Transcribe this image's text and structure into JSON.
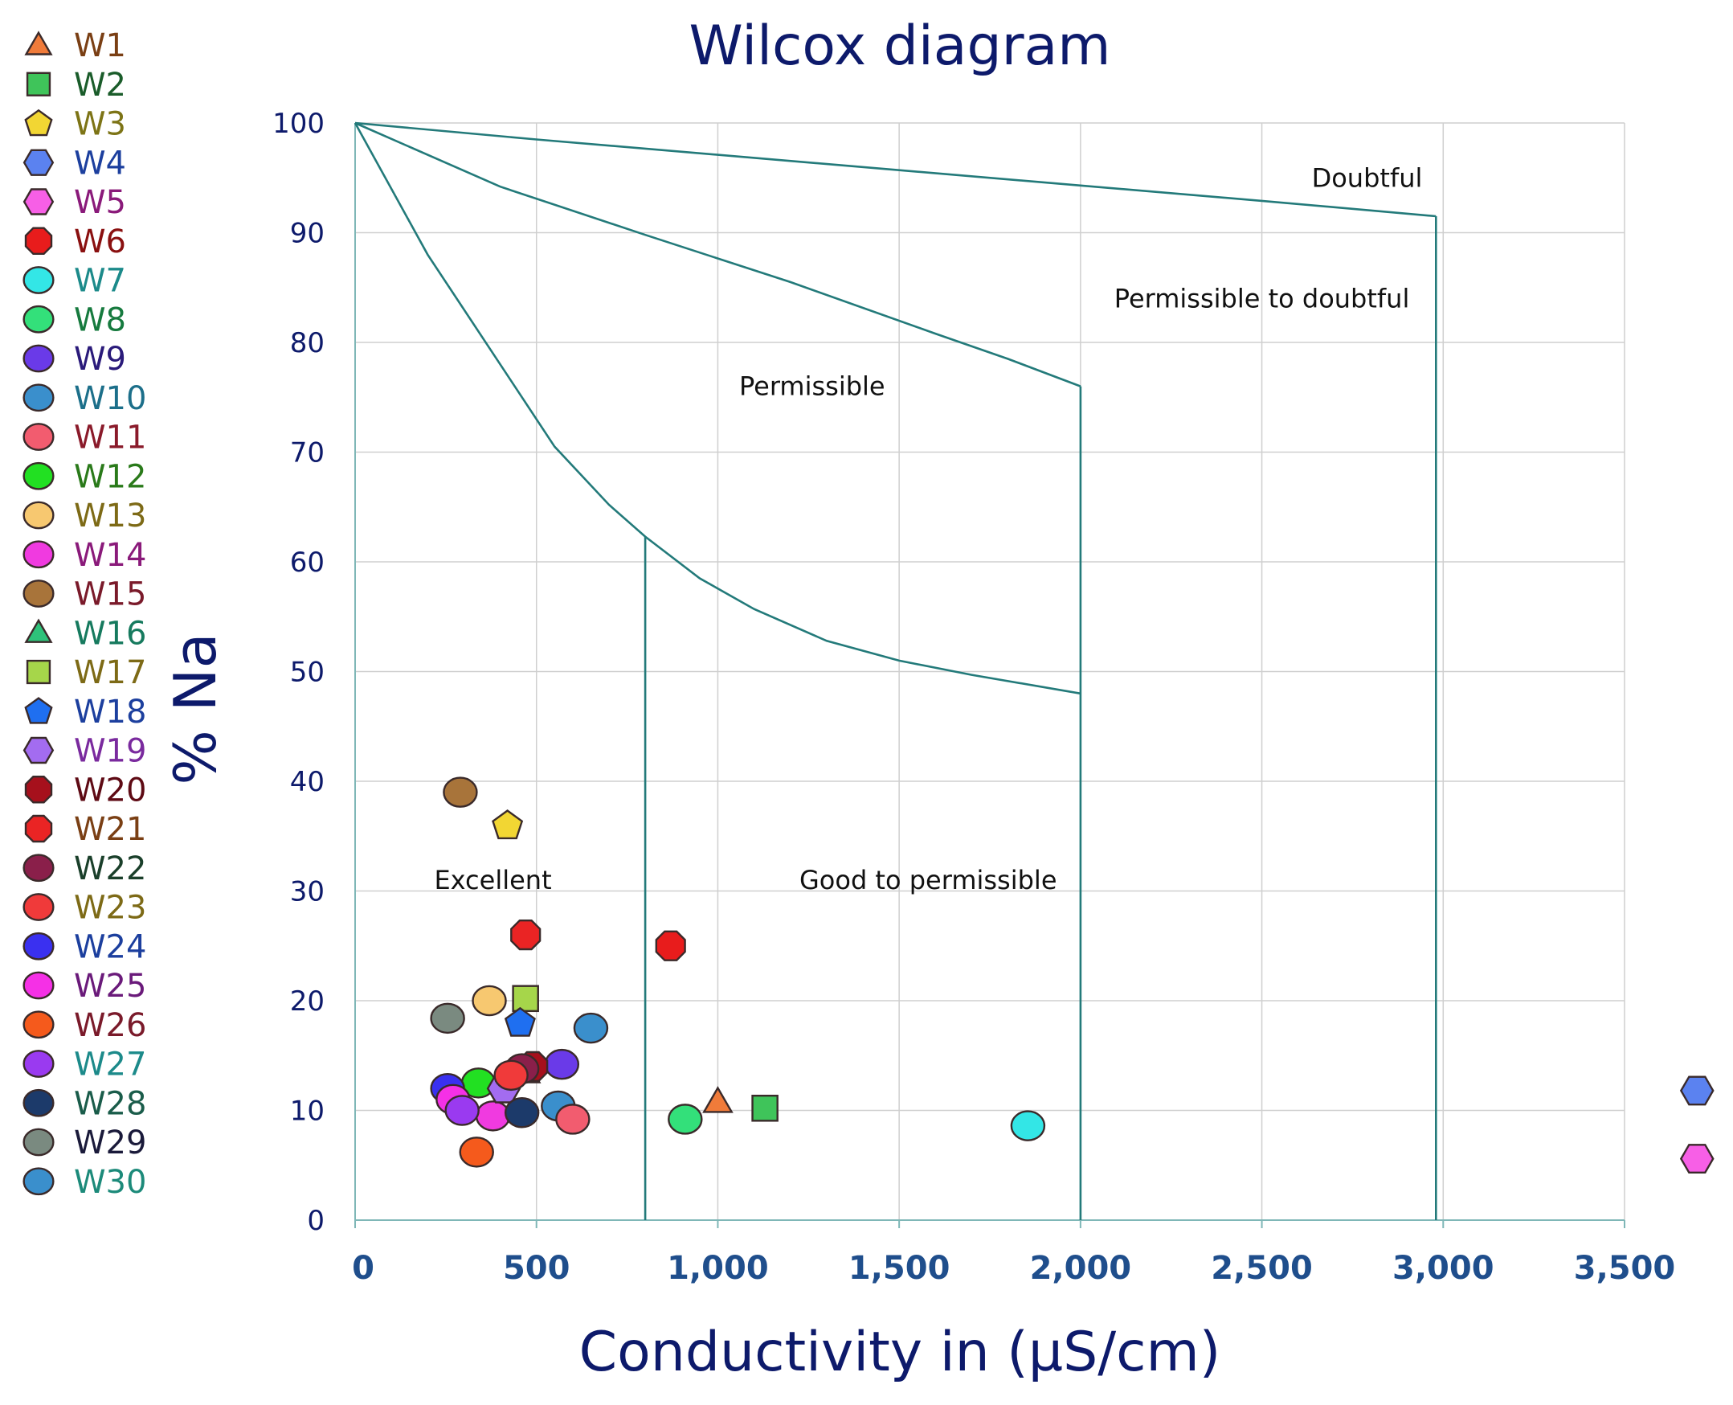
{
  "chart_data": {
    "type": "scatter",
    "title": "Wilcox diagram",
    "xlabel": "Conductivity in (µS/cm)",
    "ylabel": "% Na",
    "xlim": [
      0,
      3500
    ],
    "ylim": [
      0,
      100
    ],
    "grid": true,
    "legend_position": "left",
    "x_ticks": [
      0,
      500,
      1000,
      1500,
      2000,
      2500,
      3000,
      3500
    ],
    "x_tick_labels": [
      "0",
      "500",
      "1,000",
      "1,500",
      "2,000",
      "2,500",
      "3,000",
      "3,500"
    ],
    "y_ticks": [
      0,
      10,
      20,
      30,
      40,
      50,
      60,
      70,
      80,
      90,
      100
    ],
    "y_tick_labels": [
      "0",
      "10",
      "20",
      "30",
      "40",
      "50",
      "60",
      "70",
      "80",
      "90",
      "100"
    ],
    "classification_boundaries": [
      {
        "name": "excellent-curve",
        "points": [
          [
            0,
            100
          ],
          [
            200,
            88
          ],
          [
            400,
            78
          ],
          [
            550,
            70.5
          ],
          [
            700,
            65.2
          ],
          [
            800,
            62.3
          ],
          [
            950,
            58.5
          ],
          [
            1100,
            55.7
          ],
          [
            1300,
            52.8
          ],
          [
            1500,
            51.0
          ],
          [
            1700,
            49.7
          ],
          [
            2000,
            48.0
          ]
        ]
      },
      {
        "name": "permissible-curve",
        "points": [
          [
            0,
            100
          ],
          [
            400,
            94.2
          ],
          [
            800,
            89.8
          ],
          [
            1200,
            85.5
          ],
          [
            1600,
            80.8
          ],
          [
            1800,
            78.5
          ],
          [
            2000,
            76.0
          ]
        ]
      },
      {
        "name": "doubtful-line",
        "points": [
          [
            0,
            100
          ],
          [
            500,
            98.5
          ],
          [
            1000,
            97.1
          ],
          [
            1500,
            95.7
          ],
          [
            2000,
            94.3
          ],
          [
            2500,
            92.9
          ],
          [
            2980,
            91.5
          ]
        ]
      },
      {
        "name": "vertical-800",
        "points": [
          [
            800,
            0
          ],
          [
            800,
            62.3
          ]
        ]
      },
      {
        "name": "vertical-2000",
        "points": [
          [
            2000,
            0
          ],
          [
            2000,
            76.0
          ]
        ]
      },
      {
        "name": "vertical-2980",
        "points": [
          [
            2980,
            0
          ],
          [
            2980,
            91.5
          ]
        ]
      }
    ],
    "zone_labels": [
      {
        "text": "Excellent",
        "x": 380,
        "y": 31
      },
      {
        "text": "Good to permissible",
        "x": 1580,
        "y": 31
      },
      {
        "text": "Permissible",
        "x": 1260,
        "y": 76
      },
      {
        "text": "Permissible to doubtful",
        "x": 2500,
        "y": 84
      },
      {
        "text": "Doubtful",
        "x": 2790,
        "y": 95
      }
    ],
    "series": [
      {
        "name": "W1",
        "shape": "triangle",
        "color": "#f07b3a",
        "text_color": "#7a3f14",
        "x": 1000,
        "y": 10.8
      },
      {
        "name": "W2",
        "shape": "square",
        "color": "#3fc45a",
        "text_color": "#1a5c2a",
        "x": 1130,
        "y": 10.2
      },
      {
        "name": "W3",
        "shape": "pentagon",
        "color": "#f2d633",
        "text_color": "#7d7416",
        "x": 420,
        "y": 36
      },
      {
        "name": "W4",
        "shape": "hexagon",
        "color": "#5b82f0",
        "text_color": "#1c3f9e",
        "x": 3700,
        "y": 11.8
      },
      {
        "name": "W5",
        "shape": "hexagon",
        "color": "#f75fe6",
        "text_color": "#8a1a7a",
        "x": 3700,
        "y": 5.6
      },
      {
        "name": "W6",
        "shape": "octagon",
        "color": "#e81c1c",
        "text_color": "#8a1010",
        "x": 870,
        "y": 25
      },
      {
        "name": "W7",
        "shape": "circle",
        "color": "#33e6e6",
        "text_color": "#1c8a8a",
        "x": 1855,
        "y": 8.6
      },
      {
        "name": "W8",
        "shape": "circle",
        "color": "#33e07a",
        "text_color": "#167a3e",
        "x": 910,
        "y": 9.2
      },
      {
        "name": "W9",
        "shape": "circle",
        "color": "#6a3ae8",
        "text_color": "#2a1a7a",
        "x": 570,
        "y": 14.2
      },
      {
        "name": "W10",
        "shape": "circle",
        "color": "#3a8fcc",
        "text_color": "#1c6f8a",
        "x": 560,
        "y": 10.4
      },
      {
        "name": "W11",
        "shape": "circle",
        "color": "#f25c6f",
        "text_color": "#8a1a2a",
        "x": 600,
        "y": 9.2
      },
      {
        "name": "W12",
        "shape": "circle",
        "color": "#22e022",
        "text_color": "#2a7a1a",
        "x": 340,
        "y": 12.5
      },
      {
        "name": "W13",
        "shape": "circle",
        "color": "#f7c870",
        "text_color": "#7d6a16",
        "x": 370,
        "y": 20
      },
      {
        "name": "W14",
        "shape": "circle",
        "color": "#f03ae0",
        "text_color": "#8a1a7a",
        "x": 380,
        "y": 9.5
      },
      {
        "name": "W15",
        "shape": "circle",
        "color": "#a8743a",
        "text_color": "#7a1a2a",
        "x": 290,
        "y": 39
      },
      {
        "name": "W16",
        "shape": "triangle",
        "color": "#2ec27a",
        "text_color": "#167a5e",
        "x": 470,
        "y": 13.5
      },
      {
        "name": "W17",
        "shape": "square",
        "color": "#a6d64a",
        "text_color": "#7d6a16",
        "x": 470,
        "y": 20.2
      },
      {
        "name": "W18",
        "shape": "pentagon",
        "color": "#1f6ff0",
        "text_color": "#1c3f9e",
        "x": 455,
        "y": 18
      },
      {
        "name": "W19",
        "shape": "hexagon",
        "color": "#a36cf0",
        "text_color": "#7a2a9e",
        "x": 410,
        "y": 12
      },
      {
        "name": "W20",
        "shape": "octagon",
        "color": "#a6101c",
        "text_color": "#5e0a14",
        "x": 490,
        "y": 14
      },
      {
        "name": "W21",
        "shape": "octagon",
        "color": "#ea2424",
        "text_color": "#7a3f14",
        "x": 470,
        "y": 26
      },
      {
        "name": "W22",
        "shape": "circle",
        "color": "#8a1f4a",
        "text_color": "#1a3f2a",
        "x": 460,
        "y": 13.8
      },
      {
        "name": "W23",
        "shape": "circle",
        "color": "#f03a3a",
        "text_color": "#7d6a16",
        "x": 430,
        "y": 13.2
      },
      {
        "name": "W24",
        "shape": "circle",
        "color": "#3a30f0",
        "text_color": "#1c3f9e",
        "x": 255,
        "y": 12
      },
      {
        "name": "W25",
        "shape": "circle",
        "color": "#f530e6",
        "text_color": "#6a1a7a",
        "x": 270,
        "y": 11
      },
      {
        "name": "W26",
        "shape": "circle",
        "color": "#f55a1c",
        "text_color": "#7a1a2a",
        "x": 335,
        "y": 6.2
      },
      {
        "name": "W27",
        "shape": "circle",
        "color": "#9a3af0",
        "text_color": "#1c8a8a",
        "x": 295,
        "y": 10
      },
      {
        "name": "W28",
        "shape": "circle",
        "color": "#1c3a6a",
        "text_color": "#1a5c4a",
        "x": 460,
        "y": 9.8
      },
      {
        "name": "W29",
        "shape": "circle",
        "color": "#7a8a80",
        "text_color": "#1a1a3a",
        "x": 255,
        "y": 18.4
      },
      {
        "name": "W30",
        "shape": "circle",
        "color": "#3a8fcc",
        "text_color": "#1c8a7a",
        "x": 650,
        "y": 17.5
      }
    ]
  }
}
